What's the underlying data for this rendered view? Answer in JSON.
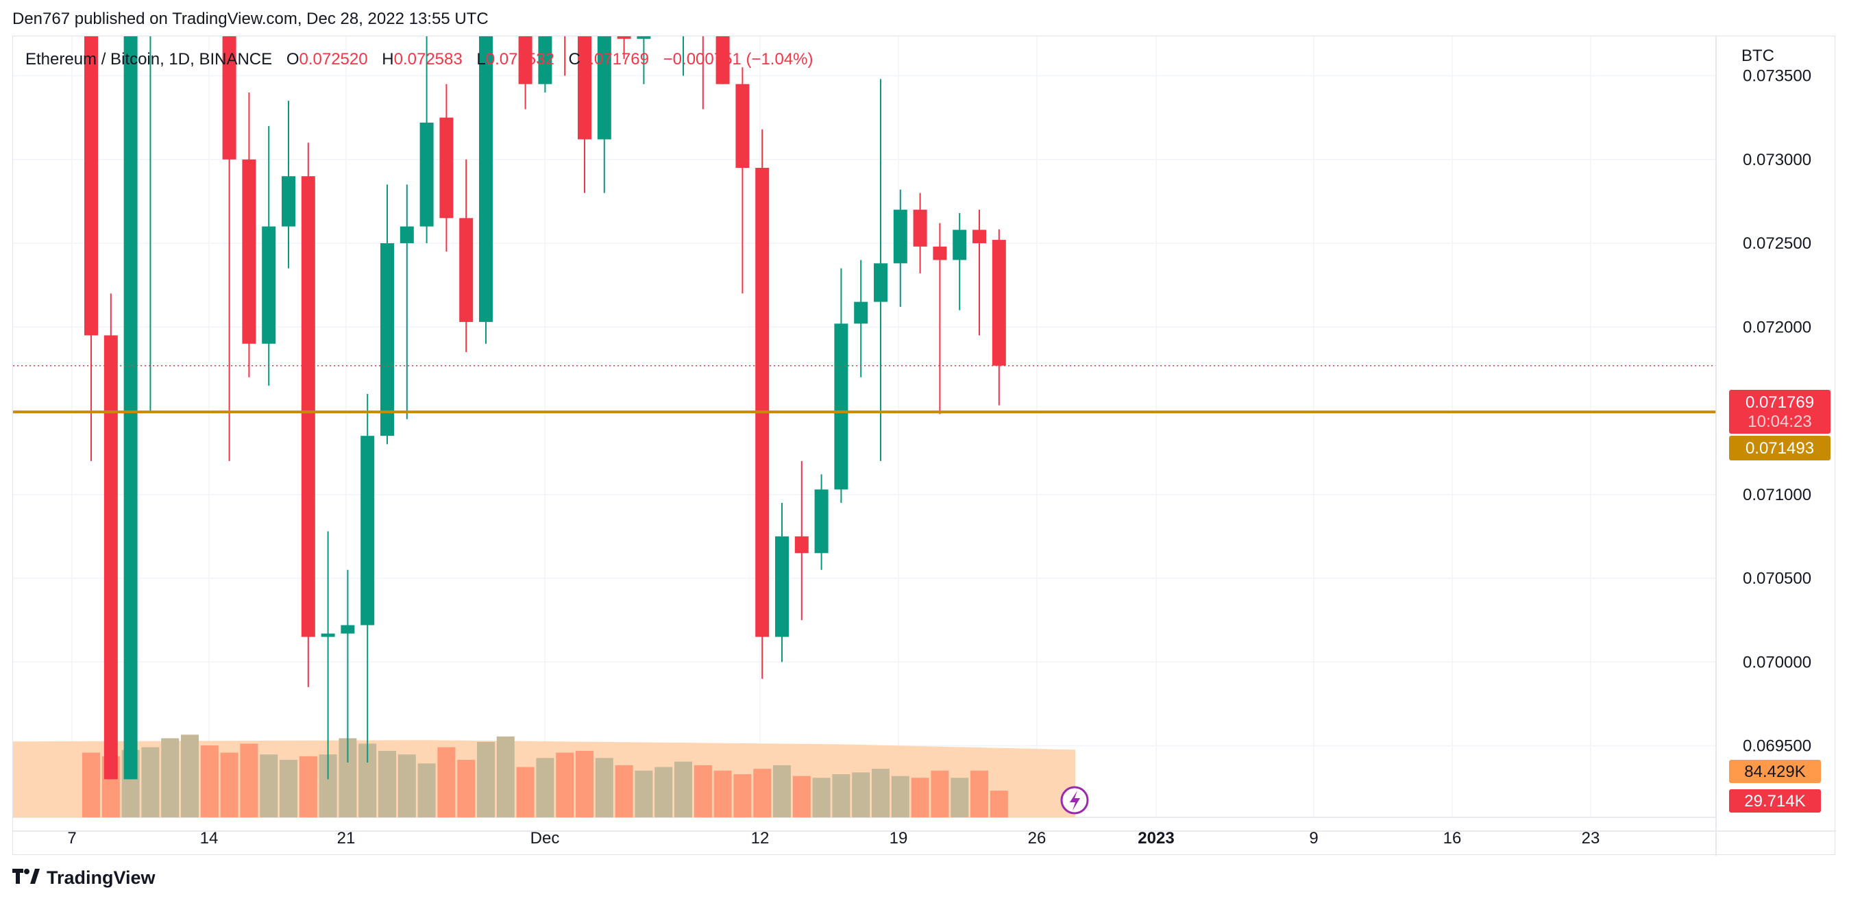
{
  "header": {
    "published_line": "Den767 published on TradingView.com, Dec 28, 2022 13:55 UTC"
  },
  "legend": {
    "symbol": "Ethereum / Bitcoin, 1D, BINANCE",
    "open_label": "O",
    "open": "0.072520",
    "high_label": "H",
    "high": "0.072583",
    "low_label": "L",
    "low": "0.071532",
    "close_label": "C",
    "close": "0.071769",
    "change": "−0.000751 (−1.04%)"
  },
  "price_axis": {
    "currency": "BTC",
    "ticks": [
      "0.073500",
      "0.073000",
      "0.072500",
      "0.072000",
      "0.071000",
      "0.070500",
      "0.070000",
      "0.069500"
    ]
  },
  "badges": {
    "last_price": "0.071769",
    "countdown": "10:04:23",
    "level_price": "0.071493",
    "volume_ma": "84.429K",
    "volume": "29.714K"
  },
  "date_axis": [
    {
      "label": "7",
      "bold": false
    },
    {
      "label": "14",
      "bold": false
    },
    {
      "label": "21",
      "bold": false
    },
    {
      "label": "Dec",
      "bold": false
    },
    {
      "label": "12",
      "bold": false
    },
    {
      "label": "19",
      "bold": false
    },
    {
      "label": "26",
      "bold": false
    },
    {
      "label": "2023",
      "bold": true
    },
    {
      "label": "9",
      "bold": false
    },
    {
      "label": "16",
      "bold": false
    },
    {
      "label": "23",
      "bold": false
    }
  ],
  "colors": {
    "up": "#089981",
    "down": "#f23645",
    "level": "#c88a00",
    "vol_up": "#9ccfc0",
    "vol_down": "#f7a8a8",
    "vol_area": "#ffcfa6",
    "vol_bar_tan": "#c4b898",
    "vol_bar_salmon": "#ff9a78",
    "grid": "#f0f3fa"
  },
  "footer": {
    "brand": "TradingView",
    "brand_icon": "tradingview-logo-icon",
    "lightning_icon": "lightning-icon"
  },
  "chart_data": {
    "type": "candlestick",
    "symbol": "Ethereum / Bitcoin",
    "interval": "1D",
    "exchange": "BINANCE",
    "y_range": [
      0.06935,
      0.07385
    ],
    "horizontal_level": 0.071493,
    "last_price": 0.071769,
    "candles": [
      {
        "o": 0.0744,
        "h": 0.0748,
        "l": 0.0712,
        "c": 0.07195
      },
      {
        "o": 0.07195,
        "h": 0.0722,
        "l": 0.0693,
        "c": 0.0693
      },
      {
        "o": 0.0693,
        "h": 0.0739,
        "l": 0.0693,
        "c": 0.07385
      },
      {
        "o": 0.07385,
        "h": 0.074,
        "l": 0.0715,
        "c": 0.07385
      },
      {
        "o": 0.0739,
        "h": 0.0746,
        "l": 0.0738,
        "c": 0.0744
      },
      {
        "o": 0.0743,
        "h": 0.0748,
        "l": 0.0739,
        "c": 0.0746
      },
      {
        "o": 0.0746,
        "h": 0.075,
        "l": 0.0738,
        "c": 0.0745
      },
      {
        "o": 0.0742,
        "h": 0.0745,
        "l": 0.0712,
        "c": 0.073
      },
      {
        "o": 0.073,
        "h": 0.0734,
        "l": 0.0717,
        "c": 0.0719
      },
      {
        "o": 0.0719,
        "h": 0.0732,
        "l": 0.07165,
        "c": 0.0726
      },
      {
        "o": 0.0726,
        "h": 0.07335,
        "l": 0.07235,
        "c": 0.0729
      },
      {
        "o": 0.0729,
        "h": 0.0731,
        "l": 0.06985,
        "c": 0.07015
      },
      {
        "o": 0.07015,
        "h": 0.07078,
        "l": 0.0693,
        "c": 0.07017
      },
      {
        "o": 0.07017,
        "h": 0.07055,
        "l": 0.0694,
        "c": 0.07022
      },
      {
        "o": 0.07022,
        "h": 0.0716,
        "l": 0.0694,
        "c": 0.07135
      },
      {
        "o": 0.07135,
        "h": 0.07285,
        "l": 0.0713,
        "c": 0.0725
      },
      {
        "o": 0.0725,
        "h": 0.07285,
        "l": 0.07145,
        "c": 0.0726
      },
      {
        "o": 0.0726,
        "h": 0.07395,
        "l": 0.0725,
        "c": 0.07322
      },
      {
        "o": 0.07325,
        "h": 0.07345,
        "l": 0.07245,
        "c": 0.07265
      },
      {
        "o": 0.07265,
        "h": 0.073,
        "l": 0.07185,
        "c": 0.07203
      },
      {
        "o": 0.07203,
        "h": 0.0739,
        "l": 0.0719,
        "c": 0.0739
      },
      {
        "o": 0.0739,
        "h": 0.0745,
        "l": 0.0738,
        "c": 0.0742
      },
      {
        "o": 0.0742,
        "h": 0.0745,
        "l": 0.0733,
        "c": 0.07345
      },
      {
        "o": 0.07345,
        "h": 0.0745,
        "l": 0.0734,
        "c": 0.0742
      },
      {
        "o": 0.0742,
        "h": 0.0744,
        "l": 0.0735,
        "c": 0.074
      },
      {
        "o": 0.074,
        "h": 0.0742,
        "l": 0.0728,
        "c": 0.07312
      },
      {
        "o": 0.07312,
        "h": 0.0742,
        "l": 0.0728,
        "c": 0.074
      },
      {
        "o": 0.074,
        "h": 0.0744,
        "l": 0.0736,
        "c": 0.07372
      },
      {
        "o": 0.07372,
        "h": 0.0742,
        "l": 0.07345,
        "c": 0.074
      },
      {
        "o": 0.074,
        "h": 0.0743,
        "l": 0.07375,
        "c": 0.07405
      },
      {
        "o": 0.07405,
        "h": 0.0744,
        "l": 0.0735,
        "c": 0.0741
      },
      {
        "o": 0.0741,
        "h": 0.0742,
        "l": 0.0733,
        "c": 0.0739
      },
      {
        "o": 0.07415,
        "h": 0.0743,
        "l": 0.07345,
        "c": 0.07345
      },
      {
        "o": 0.07345,
        "h": 0.07355,
        "l": 0.0722,
        "c": 0.07295
      },
      {
        "o": 0.07295,
        "h": 0.07318,
        "l": 0.0699,
        "c": 0.07015
      },
      {
        "o": 0.07015,
        "h": 0.07095,
        "l": 0.07,
        "c": 0.07075
      },
      {
        "o": 0.07075,
        "h": 0.0712,
        "l": 0.07025,
        "c": 0.07065
      },
      {
        "o": 0.07065,
        "h": 0.07112,
        "l": 0.07055,
        "c": 0.07103
      },
      {
        "o": 0.07103,
        "h": 0.07235,
        "l": 0.07095,
        "c": 0.07202
      },
      {
        "o": 0.07202,
        "h": 0.0724,
        "l": 0.0717,
        "c": 0.07215
      },
      {
        "o": 0.07215,
        "h": 0.07348,
        "l": 0.0712,
        "c": 0.07238
      },
      {
        "o": 0.07238,
        "h": 0.07282,
        "l": 0.07212,
        "c": 0.0727
      },
      {
        "o": 0.0727,
        "h": 0.0728,
        "l": 0.07232,
        "c": 0.07248
      },
      {
        "o": 0.07248,
        "h": 0.07262,
        "l": 0.07148,
        "c": 0.0724
      },
      {
        "o": 0.0724,
        "h": 0.07268,
        "l": 0.0721,
        "c": 0.07258
      },
      {
        "o": 0.07258,
        "h": 0.0727,
        "l": 0.07195,
        "c": 0.0725
      },
      {
        "o": 0.07252,
        "h": 0.072583,
        "l": 0.071532,
        "c": 0.071769
      }
    ],
    "volume": {
      "ma_level": 84429,
      "bars": [
        72000,
        68000,
        75000,
        78000,
        88000,
        92000,
        80000,
        72000,
        82000,
        70000,
        64000,
        68000,
        70000,
        88000,
        82000,
        74000,
        70000,
        60000,
        78000,
        64000,
        84000,
        90000,
        56000,
        66000,
        72000,
        74000,
        66000,
        58000,
        52000,
        56000,
        62000,
        58000,
        52000,
        48000,
        54000,
        58000,
        46000,
        44000,
        48000,
        50000,
        54000,
        46000,
        44000,
        52000,
        44000,
        52000,
        29714
      ]
    }
  }
}
